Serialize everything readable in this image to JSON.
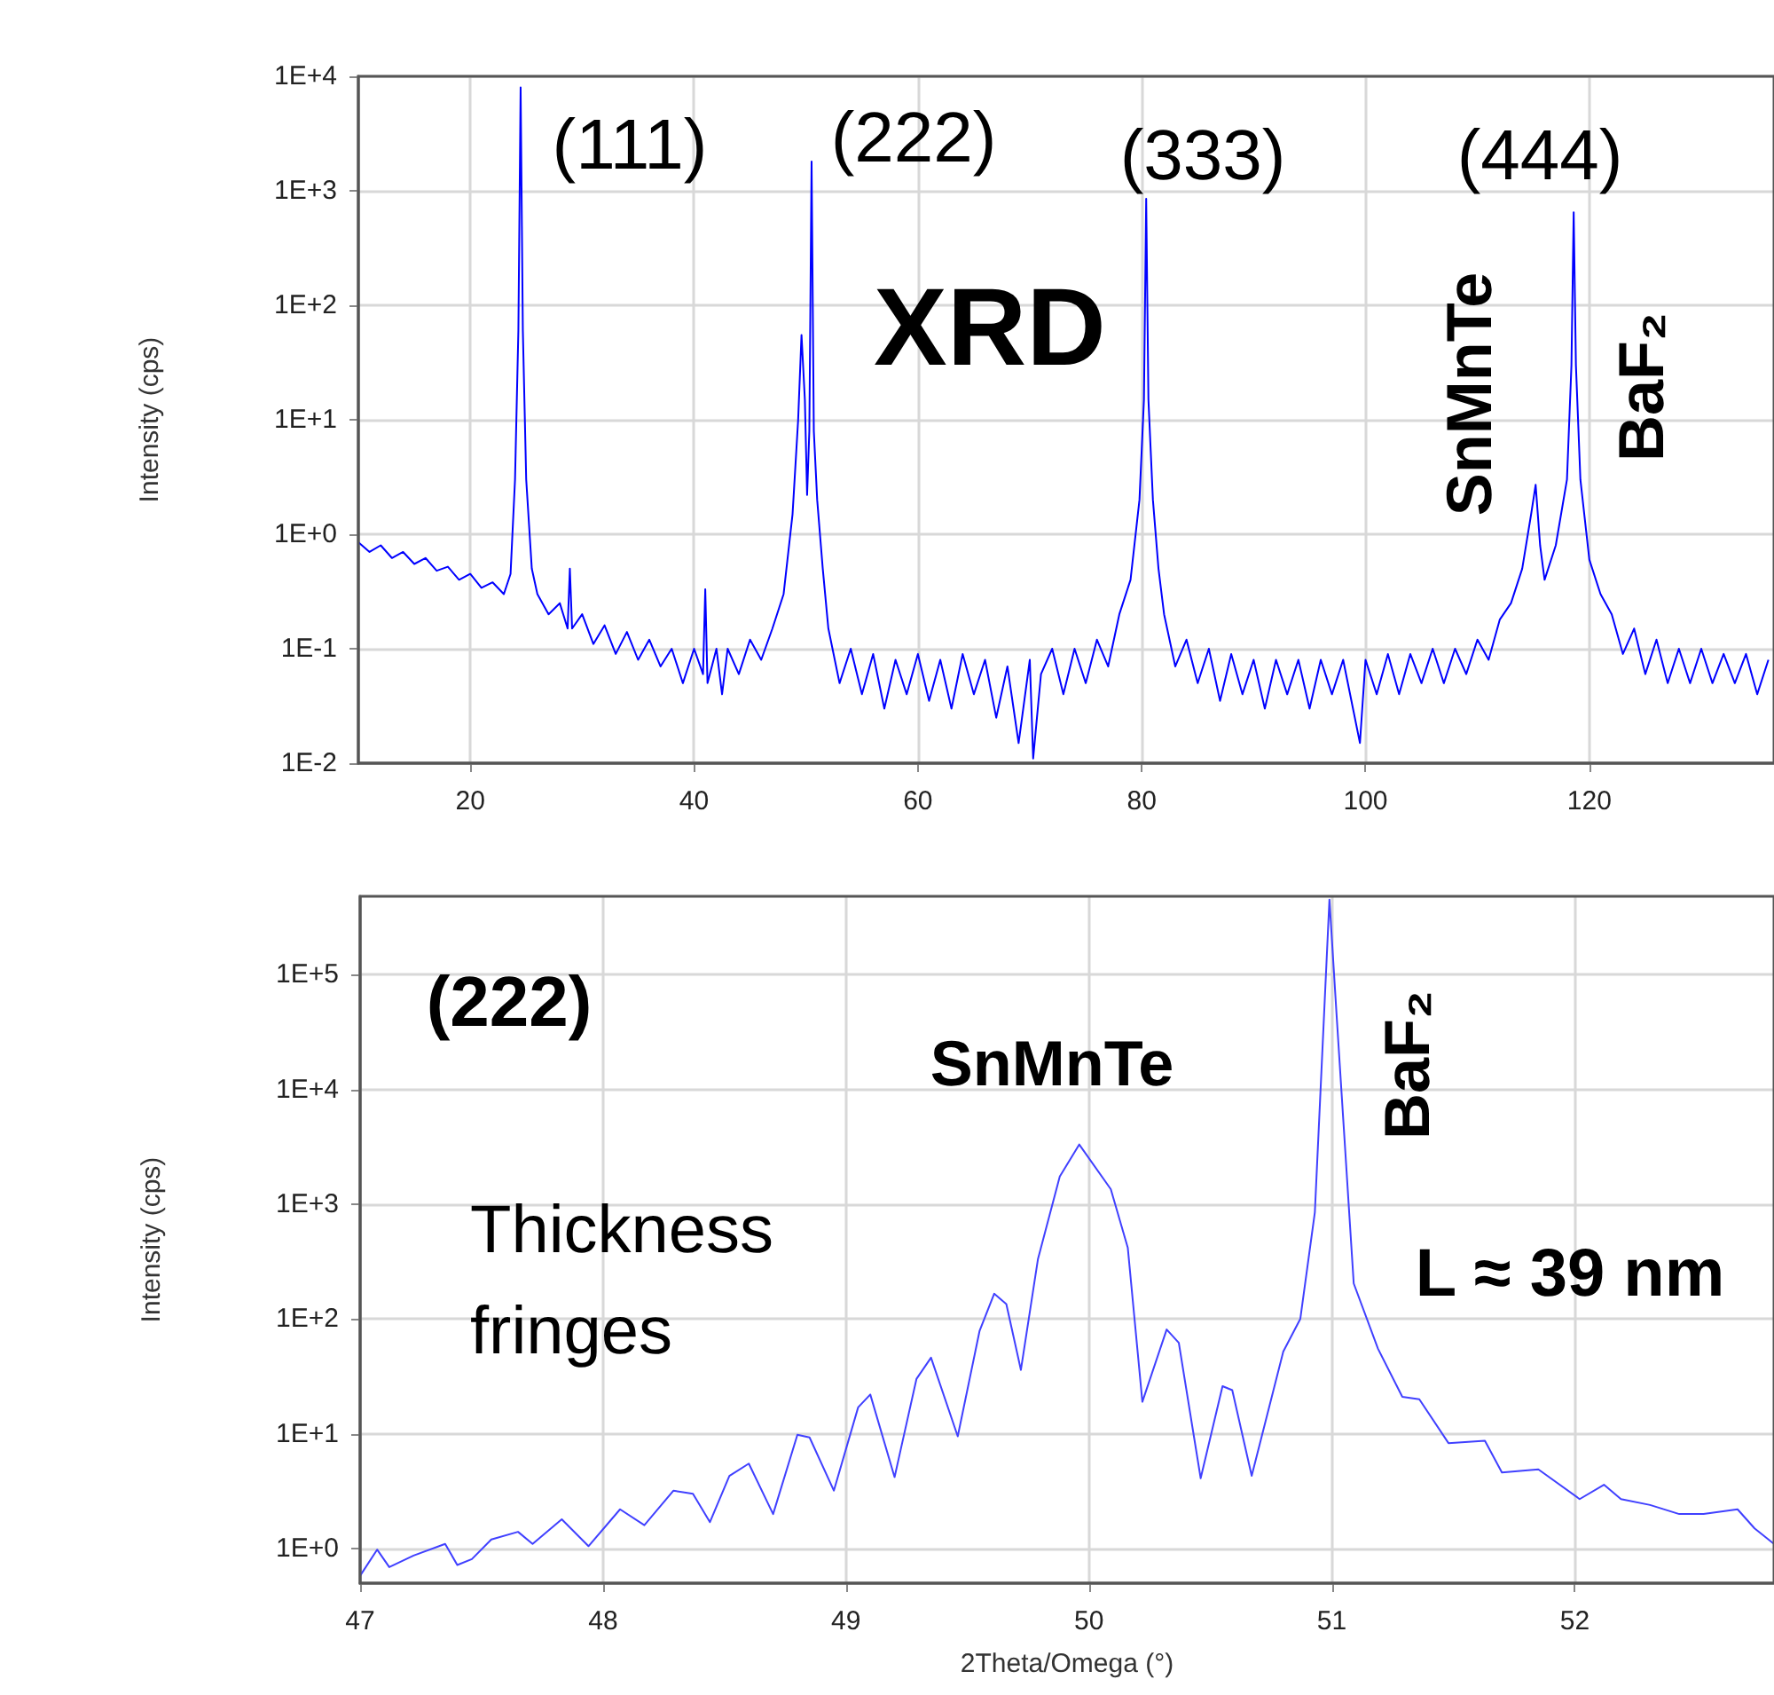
{
  "chart_data": [
    {
      "type": "line",
      "ylabel": "Intensity (cps)",
      "color": "#0000ff",
      "log": true,
      "grid": true,
      "annotations": [
        "(111)",
        "(222)",
        "(333)",
        "(444)",
        "XRD",
        "SnMnTe",
        "BaF₂"
      ],
      "xlim": [
        10,
        136.5
      ],
      "ylim": [
        0.01,
        10000
      ],
      "xticks": [
        20,
        40,
        60,
        80,
        100,
        120
      ],
      "yticks": [
        {
          "value": 0.01,
          "label": "1E-2"
        },
        {
          "value": 0.1,
          "label": "1E-1"
        },
        {
          "value": 1,
          "label": "1E+0"
        },
        {
          "value": 10,
          "label": "1E+1"
        },
        {
          "value": 100,
          "label": "1E+2"
        },
        {
          "value": 1000,
          "label": "1E+3"
        },
        {
          "value": 10000,
          "label": "1E+4"
        }
      ],
      "x": [
        10,
        11,
        12,
        13,
        14,
        15,
        16,
        17,
        18,
        19,
        20,
        21,
        22,
        23,
        23.6,
        24.0,
        24.3,
        24.5,
        24.7,
        25.0,
        25.5,
        26,
        27,
        28,
        28.7,
        28.9,
        29.1,
        30,
        31,
        32,
        33,
        34,
        35,
        36,
        37,
        38,
        39,
        40,
        40.8,
        41,
        41.2,
        42,
        42.5,
        43,
        44,
        45,
        46,
        47,
        48,
        48.8,
        49.3,
        49.6,
        49.9,
        50.1,
        50.3,
        50.5,
        50.7,
        51.0,
        51.5,
        52,
        53,
        54,
        55,
        56,
        57,
        58,
        59,
        60,
        61,
        62,
        63,
        64,
        65,
        66,
        67,
        68,
        69,
        70,
        70.3,
        71,
        72,
        73,
        74,
        75,
        76,
        77,
        78,
        79,
        79.8,
        80.2,
        80.4,
        80.6,
        81,
        81.5,
        82,
        83,
        84,
        85,
        86,
        87,
        88,
        89,
        90,
        91,
        92,
        93,
        94,
        95,
        96,
        97,
        98,
        99.5,
        100,
        101,
        102,
        103,
        104,
        105,
        106,
        107,
        108,
        109,
        110,
        111,
        112,
        113,
        114,
        114.8,
        115.2,
        115.6,
        116,
        117,
        118,
        118.4,
        118.6,
        118.8,
        119.2,
        120,
        121,
        122,
        123,
        124,
        125,
        126,
        127,
        128,
        129,
        130,
        131,
        132,
        133,
        134,
        135,
        136
      ],
      "values": [
        0.85,
        0.7,
        0.8,
        0.62,
        0.7,
        0.55,
        0.62,
        0.48,
        0.52,
        0.4,
        0.45,
        0.34,
        0.38,
        0.3,
        0.45,
        3,
        60,
        8000,
        60,
        3,
        0.5,
        0.3,
        0.2,
        0.25,
        0.15,
        0.5,
        0.15,
        0.2,
        0.11,
        0.16,
        0.09,
        0.14,
        0.08,
        0.12,
        0.07,
        0.1,
        0.05,
        0.1,
        0.06,
        0.33,
        0.05,
        0.1,
        0.04,
        0.1,
        0.06,
        0.12,
        0.08,
        0.15,
        0.3,
        1.5,
        10,
        55,
        15,
        2.2,
        8,
        1800,
        8,
        2,
        0.5,
        0.15,
        0.05,
        0.1,
        0.04,
        0.09,
        0.03,
        0.08,
        0.04,
        0.09,
        0.035,
        0.08,
        0.03,
        0.09,
        0.04,
        0.08,
        0.025,
        0.07,
        0.015,
        0.08,
        0.011,
        0.06,
        0.1,
        0.04,
        0.1,
        0.05,
        0.12,
        0.07,
        0.2,
        0.4,
        2,
        15,
        850,
        15,
        2,
        0.5,
        0.2,
        0.07,
        0.12,
        0.05,
        0.1,
        0.035,
        0.09,
        0.04,
        0.08,
        0.03,
        0.08,
        0.04,
        0.08,
        0.03,
        0.08,
        0.04,
        0.08,
        0.015,
        0.08,
        0.04,
        0.09,
        0.04,
        0.09,
        0.05,
        0.1,
        0.05,
        0.1,
        0.06,
        0.12,
        0.08,
        0.18,
        0.25,
        0.5,
        1.5,
        2.7,
        0.8,
        0.4,
        0.8,
        3,
        30,
        650,
        30,
        3,
        0.6,
        0.3,
        0.2,
        0.09,
        0.15,
        0.06,
        0.12,
        0.05,
        0.1,
        0.05,
        0.1,
        0.05,
        0.09,
        0.05,
        0.09,
        0.04,
        0.08
      ]
    },
    {
      "type": "line",
      "ylabel": "Intensity (cps)",
      "xlabel": "2Theta/Omega (°)",
      "color": "#4040ff",
      "log": true,
      "grid": true,
      "annotations": [
        "(222)",
        "SnMnTe",
        "Thickness fringes",
        "BaF₂",
        "L ≈ 39 nm"
      ],
      "xlim": [
        47,
        52.82
      ],
      "ylim": [
        0.5,
        480000
      ],
      "xticks": [
        47,
        48,
        49,
        50,
        51,
        52
      ],
      "yticks": [
        {
          "value": 1,
          "label": "1E+0"
        },
        {
          "value": 10,
          "label": "1E+1"
        },
        {
          "value": 100,
          "label": "1E+2"
        },
        {
          "value": 1000,
          "label": "1E+3"
        },
        {
          "value": 10000,
          "label": "1E+4"
        },
        {
          "value": 100000,
          "label": "1E+5"
        }
      ],
      "x": [
        47,
        47.07,
        47.12,
        47.22,
        47.35,
        47.4,
        47.46,
        47.54,
        47.65,
        47.71,
        47.83,
        47.94,
        48.07,
        48.17,
        48.29,
        48.37,
        48.44,
        48.52,
        48.6,
        48.7,
        48.8,
        48.85,
        48.95,
        49.05,
        49.1,
        49.2,
        49.29,
        49.35,
        49.46,
        49.55,
        49.61,
        49.66,
        49.72,
        49.79,
        49.88,
        49.96,
        50.09,
        50.16,
        50.22,
        50.32,
        50.37,
        50.46,
        50.55,
        50.59,
        50.67,
        50.8,
        50.87,
        50.93,
        50.99,
        51.02,
        51.09,
        51.19,
        51.29,
        51.36,
        51.48,
        51.63,
        51.7,
        51.85,
        52.02,
        52.12,
        52.19,
        52.31,
        52.43,
        52.53,
        52.67,
        52.74,
        52.82
      ],
      "values": [
        0.58,
        0.98,
        0.69,
        0.87,
        1.1,
        0.72,
        0.81,
        1.2,
        1.4,
        1.1,
        1.8,
        1.05,
        2.2,
        1.6,
        3.2,
        3,
        1.7,
        4.3,
        5.5,
        2,
        9.8,
        9.3,
        3.2,
        17,
        22,
        4.2,
        30,
        46,
        9.5,
        79,
        166,
        135,
        36,
        331,
        1740,
        3310,
        1350,
        417,
        19,
        81,
        62,
        4.1,
        26,
        24,
        4.3,
        52,
        100,
        850,
        450000,
        42700,
        204,
        55,
        21,
        20,
        8.3,
        8.7,
        4.6,
        4.9,
        2.7,
        3.6,
        2.7,
        2.4,
        2,
        2,
        2.2,
        1.5,
        1.1
      ]
    }
  ]
}
